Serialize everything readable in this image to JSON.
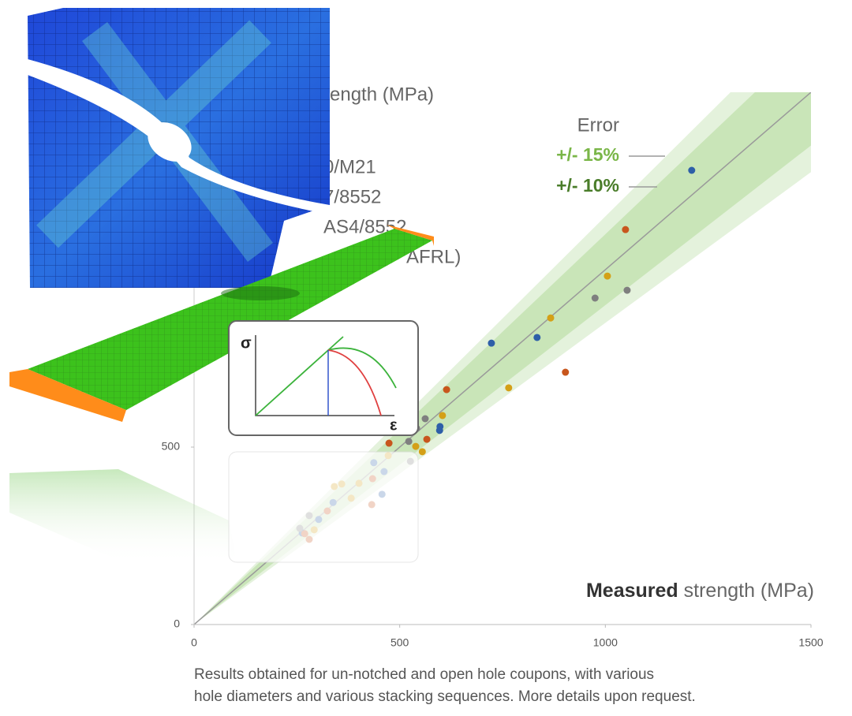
{
  "chart_data": {
    "type": "scatter",
    "y_label": "rength (MPa)",
    "x_label_bold": "Measured",
    "x_label": "strength (MPa)",
    "error_title": "Error",
    "bands": [
      {
        "label": "+/- 15%",
        "tolerance": 15,
        "color": "#7ab648"
      },
      {
        "label": "+/- 10%",
        "tolerance": 10,
        "color": "#4a7d2a"
      }
    ],
    "xlim": [
      0,
      1500
    ],
    "ylim": [
      0,
      1500
    ],
    "xticks": [
      0,
      500,
      1000,
      1500
    ],
    "yticks": [
      0,
      500
    ],
    "grid": false,
    "series": [
      {
        "name": "0/M21",
        "color": "#2e5fa8",
        "x": [
          1210,
          723,
          834,
          598,
          597,
          437,
          462,
          457,
          338,
          303,
          263
        ],
        "values": [
          1280,
          793,
          809,
          558,
          547,
          456,
          431,
          367,
          344,
          296,
          258
        ]
      },
      {
        "name": "7/8552",
        "color": "#c8561c",
        "x": [
          1049,
          903,
          614,
          474,
          566,
          434,
          432,
          324,
          269,
          280
        ],
        "values": [
          1113,
          711,
          662,
          511,
          522,
          411,
          338,
          320,
          256,
          240
        ]
      },
      {
        "name": "AS4/8552",
        "color": "#7f7f7f",
        "x": [
          1053,
          975,
          562,
          541,
          522,
          526,
          280,
          257
        ],
        "values": [
          942,
          920,
          580,
          553,
          516,
          460,
          307,
          271
        ]
      },
      {
        "name": "AFRL)",
        "color": "#d4a017",
        "x": [
          1005,
          867,
          765,
          604,
          555,
          539,
          472,
          401,
          359,
          341,
          382,
          292
        ],
        "values": [
          982,
          864,
          667,
          589,
          487,
          502,
          476,
          398,
          396,
          389,
          356,
          267
        ]
      }
    ],
    "caption": [
      "Results obtained for un-notched and open hole coupons, with various",
      "hole diameters and various stacking sequences. More details upon request."
    ]
  },
  "inset": {
    "y_label": "σ",
    "x_label": "ε"
  }
}
